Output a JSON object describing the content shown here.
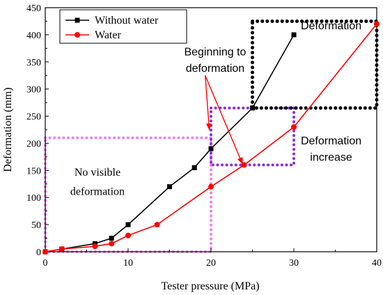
{
  "chart_data": {
    "type": "line",
    "xlabel": "Tester pressure (MPa)",
    "ylabel": "Deformation (mm)",
    "xlim": [
      0,
      40
    ],
    "ylim": [
      0,
      450
    ],
    "xticks": [
      0,
      10,
      20,
      30,
      40
    ],
    "yticks": [
      0,
      50,
      100,
      150,
      200,
      250,
      300,
      350,
      400,
      450
    ],
    "grid": false,
    "legend_position": "top-left",
    "series": [
      {
        "name": "Without water",
        "color": "#000000",
        "marker": "square",
        "x": [
          0,
          2,
          6,
          8,
          10,
          15,
          18,
          20,
          25,
          30
        ],
        "y": [
          0,
          5,
          15,
          25,
          50,
          120,
          155,
          190,
          265,
          400
        ]
      },
      {
        "name": "Water",
        "color": "#ff0000",
        "marker": "circle",
        "x": [
          0,
          2,
          6,
          8,
          10,
          13.5,
          20,
          24,
          30,
          40
        ],
        "y": [
          0,
          5,
          10,
          15,
          30,
          50,
          120,
          160,
          230,
          420
        ]
      }
    ],
    "regions": [
      {
        "name": "No visible deformation",
        "color": "#ee82ee",
        "x": [
          0,
          20
        ],
        "y": [
          0,
          210
        ]
      },
      {
        "name": "Deformation increase",
        "color": "#8a2be2",
        "x": [
          20,
          30
        ],
        "y": [
          160,
          265
        ]
      },
      {
        "name": "Deformation",
        "color": "#000000",
        "x": [
          25,
          40
        ],
        "y": [
          265,
          425
        ]
      }
    ],
    "annotations": [
      {
        "text": [
          "No visible",
          "deformation"
        ],
        "x": 6.3,
        "y": [
          140,
          105
        ],
        "color": "#000000",
        "font": "serif"
      },
      {
        "text": [
          "Beginning to",
          "deformation"
        ],
        "x": 20.5,
        "y": [
          362,
          332
        ],
        "color": "#000000",
        "font": "sans"
      },
      {
        "text": [
          "Deformation",
          "increase"
        ],
        "x": 34.5,
        "y": [
          198,
          168
        ],
        "color": "#000000",
        "font": "sans"
      },
      {
        "text": [
          "Deformation"
        ],
        "x": 34.5,
        "y": [
          410
        ],
        "color": "#000000",
        "font": "sans"
      }
    ],
    "arrows": [
      {
        "from": [
          19.3,
          325
        ],
        "to": [
          19.8,
          225
        ],
        "color": "#ff0000"
      },
      {
        "from": [
          19.3,
          325
        ],
        "to": [
          23.8,
          162
        ],
        "color": "#ff0000"
      }
    ]
  }
}
